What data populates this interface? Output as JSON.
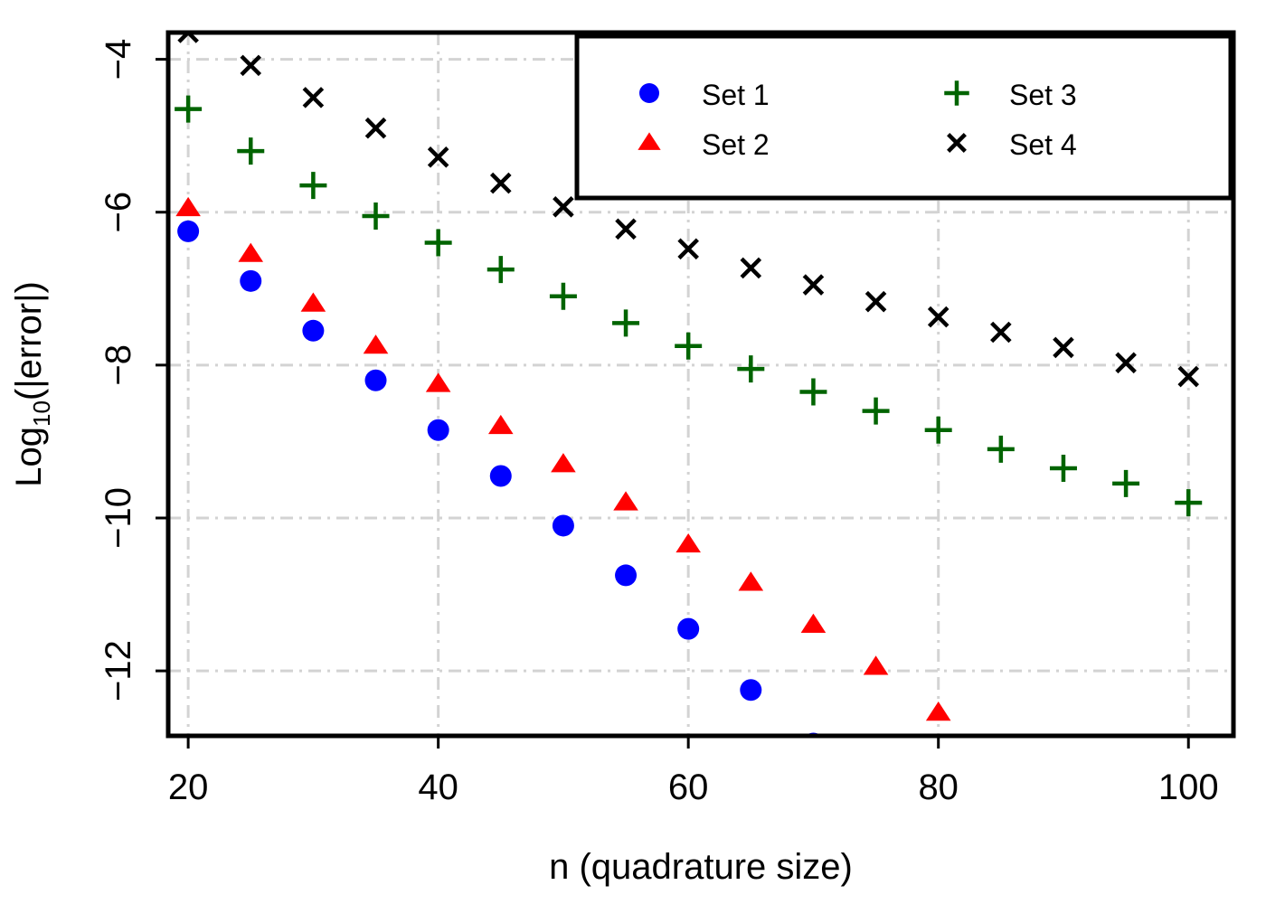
{
  "chart_data": {
    "type": "scatter",
    "title": "",
    "xlabel": "n (quadrature size)",
    "ylabel_main": "Log",
    "ylabel_sub": "10",
    "ylabel_tail": "(|error|)",
    "xlim": [
      18.4,
      103.6
    ],
    "ylim": [
      -12.85,
      -3.65
    ],
    "xticks": [
      20,
      40,
      60,
      80,
      100
    ],
    "xtick_labels": [
      "20",
      "40",
      "60",
      "80",
      "100"
    ],
    "yticks": [
      -4,
      -6,
      -8,
      -10,
      -12
    ],
    "ytick_labels": [
      "−4",
      "−6",
      "−8",
      "−10",
      "−12"
    ],
    "grid": true,
    "legend_position": "top-right",
    "series": [
      {
        "name": "Set 1",
        "marker": "circle",
        "color": "#0000ff",
        "x": [
          20,
          25,
          30,
          35,
          40,
          45,
          50,
          55,
          60,
          65,
          70
        ],
        "y": [
          -6.25,
          -6.9,
          -7.55,
          -8.2,
          -8.85,
          -9.45,
          -10.1,
          -10.75,
          -11.45,
          -12.25,
          -12.95
        ]
      },
      {
        "name": "Set 2",
        "marker": "triangle",
        "color": "#ff0000",
        "x": [
          20,
          25,
          30,
          35,
          40,
          45,
          50,
          55,
          60,
          65,
          70,
          75,
          80
        ],
        "y": [
          -5.95,
          -6.55,
          -7.2,
          -7.75,
          -8.25,
          -8.8,
          -9.3,
          -9.8,
          -10.35,
          -10.85,
          -11.4,
          -11.95,
          -12.55
        ]
      },
      {
        "name": "Set 3",
        "marker": "plus",
        "color": "#006400",
        "x": [
          20,
          25,
          30,
          35,
          40,
          45,
          50,
          55,
          60,
          65,
          70,
          75,
          80,
          85,
          90,
          95,
          100
        ],
        "y": [
          -4.65,
          -5.2,
          -5.65,
          -6.05,
          -6.4,
          -6.75,
          -7.1,
          -7.45,
          -7.75,
          -8.05,
          -8.35,
          -8.6,
          -8.85,
          -9.1,
          -9.35,
          -9.55,
          -9.8
        ]
      },
      {
        "name": "Set 4",
        "marker": "x",
        "color": "#000000",
        "x": [
          20,
          25,
          30,
          35,
          40,
          45,
          50,
          55,
          60,
          65,
          70,
          75,
          80,
          85,
          90,
          95,
          100
        ],
        "y": [
          -3.65,
          -4.08,
          -4.5,
          -4.9,
          -5.28,
          -5.62,
          -5.93,
          -6.22,
          -6.48,
          -6.73,
          -6.95,
          -7.17,
          -7.37,
          -7.57,
          -7.77,
          -7.97,
          -8.15
        ]
      }
    ]
  }
}
